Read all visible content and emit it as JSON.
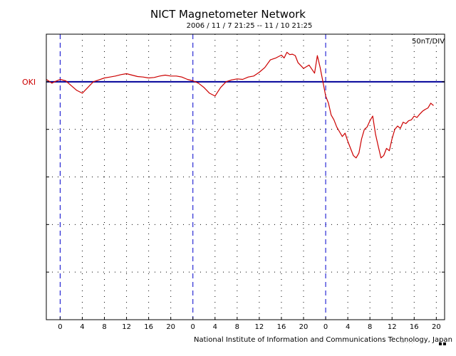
{
  "title": "NICT Magnetometer Network",
  "subtitle": "2006 / 11 / 7   21:25 -- 11 / 10   21:25",
  "scale_label": "50nT/DIV",
  "station_label": "OKI",
  "credit": "National Institute of Information and Communications Technology, Japan",
  "mark": "™ · · ·",
  "colors": {
    "trace": "#cc0000",
    "baseline": "#000099",
    "day_boundary": "#0000cc",
    "grid": "#000000",
    "station": "#cc0000"
  },
  "chart_data": {
    "type": "line",
    "title": "NICT Magnetometer Network",
    "subtitle": "2006 / 11 / 7   21:25 -- 11 / 10   21:25",
    "xlabel": "",
    "ylabel": "",
    "x_unit": "hours",
    "xlim": [
      -2.5,
      69.5
    ],
    "ylim": [
      -5.0,
      1.0
    ],
    "y_unit": "divisions of 50 nT",
    "xticks": [
      0,
      4,
      8,
      12,
      16,
      20,
      24,
      28,
      32,
      36,
      40,
      44,
      48,
      52,
      56,
      60,
      64,
      68
    ],
    "xtick_labels": [
      "0",
      "4",
      "8",
      "12",
      "16",
      "20",
      "0",
      "4",
      "8",
      "12",
      "16",
      "20",
      "0",
      "4",
      "8",
      "12",
      "16",
      "20"
    ],
    "day_boundaries": [
      0,
      24,
      48
    ],
    "baseline": 0,
    "grid": true,
    "series": [
      {
        "x": [
          -2.5,
          -1.5,
          -1.0,
          0.0,
          1.0,
          2.0,
          3.0,
          4.0,
          5.0,
          6.0,
          7.0,
          8.0,
          9.0,
          10.0,
          11.0,
          12.0,
          13.0,
          14.0,
          15.0,
          16.0,
          17.0,
          18.0,
          19.0,
          20.0,
          21.0,
          22.0,
          23.0,
          24.0,
          25.0,
          26.0,
          27.0,
          28.0,
          29.0,
          30.0,
          31.0,
          32.0,
          33.0,
          34.0,
          35.0,
          36.0,
          37.0,
          38.0,
          39.0,
          40.0,
          40.5,
          41.0,
          41.5,
          42.0,
          42.5,
          43.0,
          44.0,
          45.0,
          46.0,
          46.5,
          47.0,
          47.5,
          48.0,
          48.5,
          49.0,
          49.5,
          50.0,
          50.5,
          51.0,
          51.5,
          52.0,
          52.5,
          53.0,
          53.5,
          54.0,
          54.5,
          55.0,
          55.5,
          56.0,
          56.5,
          57.0,
          57.5,
          58.0,
          58.5,
          59.0,
          59.5,
          60.0,
          60.5,
          61.0,
          61.5,
          62.0,
          62.5,
          63.0,
          63.5,
          64.0,
          64.5,
          65.0,
          65.5,
          66.0,
          66.5,
          67.0,
          67.5
        ],
        "y": [
          0.05,
          -0.03,
          0.0,
          0.05,
          0.02,
          -0.08,
          -0.18,
          -0.24,
          -0.12,
          0.0,
          0.04,
          0.08,
          0.1,
          0.12,
          0.15,
          0.17,
          0.14,
          0.11,
          0.1,
          0.08,
          0.09,
          0.12,
          0.14,
          0.12,
          0.12,
          0.1,
          0.05,
          0.02,
          -0.03,
          -0.12,
          -0.24,
          -0.3,
          -0.12,
          0.0,
          0.04,
          0.06,
          0.05,
          0.1,
          0.12,
          0.2,
          0.3,
          0.46,
          0.5,
          0.56,
          0.5,
          0.62,
          0.57,
          0.58,
          0.55,
          0.4,
          0.28,
          0.35,
          0.18,
          0.55,
          0.3,
          0.0,
          -0.3,
          -0.45,
          -0.7,
          -0.8,
          -0.95,
          -1.05,
          -1.15,
          -1.08,
          -1.25,
          -1.4,
          -1.55,
          -1.6,
          -1.5,
          -1.2,
          -1.0,
          -0.95,
          -0.82,
          -0.72,
          -1.1,
          -1.35,
          -1.6,
          -1.55,
          -1.4,
          -1.45,
          -1.2,
          -1.0,
          -0.93,
          -0.98,
          -0.85,
          -0.88,
          -0.82,
          -0.8,
          -0.72,
          -0.75,
          -0.68,
          -0.62,
          -0.58,
          -0.55,
          -0.45,
          -0.5
        ]
      }
    ]
  }
}
